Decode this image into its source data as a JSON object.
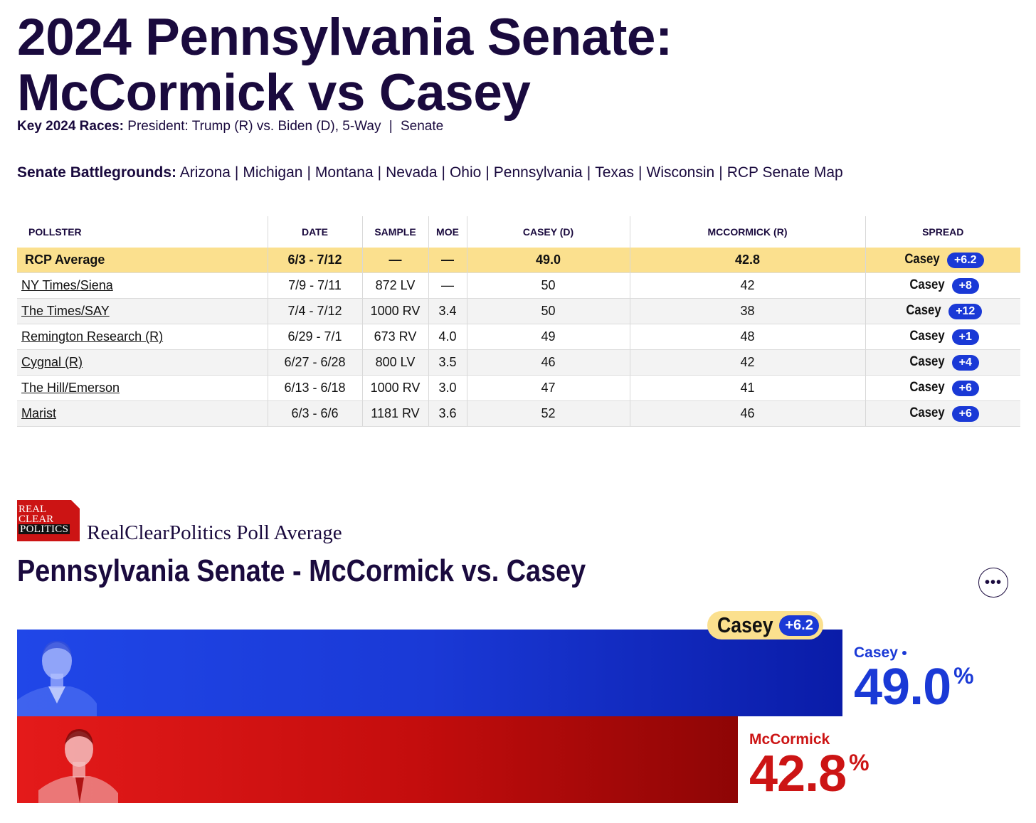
{
  "header": {
    "title_line1": "2024 Pennsylvania Senate:",
    "title_line2": "McCormick vs Casey",
    "key_races_label": "Key 2024 Races:",
    "key_races": [
      "President: Trump (R) vs. Biden (D)",
      "5-Way",
      "Senate"
    ],
    "battlegrounds_label": "Senate Battlegrounds:",
    "battlegrounds": [
      "Arizona",
      "Michigan",
      "Montana",
      "Nevada",
      "Ohio",
      "Pennsylvania",
      "Texas",
      "Wisconsin",
      "RCP Senate Map"
    ]
  },
  "table": {
    "headers": [
      "POLLSTER",
      "DATE",
      "SAMPLE",
      "MOE",
      "CASEY (D)",
      "MCCORMICK (R)",
      "SPREAD"
    ],
    "average": {
      "pollster": "RCP Average",
      "date": "6/3 - 7/12",
      "sample": "—",
      "moe": "—",
      "casey": "49.0",
      "mccormick": "42.8",
      "spread_name": "Casey",
      "spread_value": "+6.2"
    },
    "rows": [
      {
        "pollster": "NY Times/Siena",
        "date": "7/9 - 7/11",
        "sample": "872 LV",
        "moe": "—",
        "casey": "50",
        "mccormick": "42",
        "spread_name": "Casey",
        "spread_value": "+8"
      },
      {
        "pollster": "The Times/SAY",
        "date": "7/4 - 7/12",
        "sample": "1000 RV",
        "moe": "3.4",
        "casey": "50",
        "mccormick": "38",
        "spread_name": "Casey",
        "spread_value": "+12"
      },
      {
        "pollster": "Remington Research (R)",
        "date": "6/29 - 7/1",
        "sample": "673 RV",
        "moe": "4.0",
        "casey": "49",
        "mccormick": "48",
        "spread_name": "Casey",
        "spread_value": "+1"
      },
      {
        "pollster": "Cygnal (R)",
        "date": "6/27 - 6/28",
        "sample": "800 LV",
        "moe": "3.5",
        "casey": "46",
        "mccormick": "42",
        "spread_name": "Casey",
        "spread_value": "+4"
      },
      {
        "pollster": "The Hill/Emerson",
        "date": "6/13 - 6/18",
        "sample": "1000 RV",
        "moe": "3.0",
        "casey": "47",
        "mccormick": "41",
        "spread_name": "Casey",
        "spread_value": "+6"
      },
      {
        "pollster": "Marist",
        "date": "6/3 - 6/6",
        "sample": "1181 RV",
        "moe": "3.6",
        "casey": "52",
        "mccormick": "46",
        "spread_name": "Casey",
        "spread_value": "+6"
      }
    ]
  },
  "poll_average": {
    "logo_lines": [
      "REAL",
      "CLEAR",
      "POLITICS"
    ],
    "brand": "RealClearPolitics Poll Average",
    "title": "Pennsylvania Senate - McCormick vs. Casey",
    "more_icon": "ellipsis-icon",
    "leader": {
      "name": "Casey",
      "spread": "+6.2"
    },
    "percent_sign": "%"
  },
  "chart_data": {
    "type": "bar",
    "orientation": "horizontal",
    "categories": [
      "Casey",
      "McCormick"
    ],
    "values": [
      49.0,
      42.8
    ],
    "value_labels": [
      "49.0",
      "42.8"
    ],
    "unit": "%",
    "colors": [
      "#1a39d6",
      "#cc1414"
    ]
  },
  "colors": {
    "democrat": "#1a39d6",
    "republican": "#cc1414",
    "highlight": "#fbe08e",
    "heading": "#1a0a3e"
  }
}
